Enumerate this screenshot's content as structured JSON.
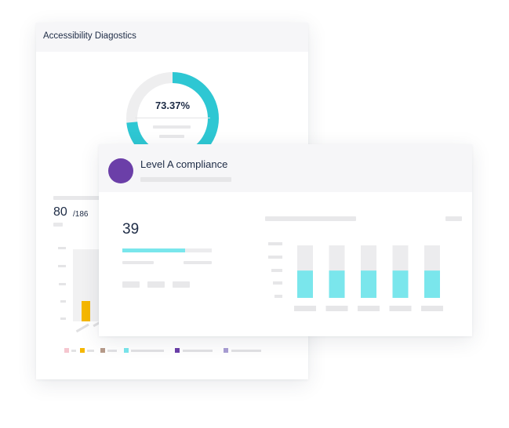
{
  "back_panel": {
    "title": "Accessibility Diagostics",
    "donut": {
      "value_label": "73.37%",
      "fraction": 0.7337,
      "fill_color": "#2ec7d3",
      "track_color": "#eeeeef"
    },
    "stat": {
      "value": "80",
      "total": "/186"
    },
    "chart_data": {
      "type": "bar",
      "values": [
        1
      ],
      "colors": [
        "#f5b700"
      ]
    },
    "legend_colors": [
      "#f5c6cf",
      "#f5b700",
      "#b79b8a",
      "#7ae6ec",
      "#6b3fa8",
      "#a99ed4"
    ]
  },
  "front_panel": {
    "title": "Level A compliance",
    "avatar_color": "#6b3fa8",
    "value": "39",
    "progress_fraction": 0.7,
    "chart_data": {
      "type": "bar",
      "values": [
        0.52,
        0.52,
        0.52,
        0.52,
        0.52
      ],
      "bar_color": "#7ae6ec",
      "track_color": "#ececee"
    }
  }
}
